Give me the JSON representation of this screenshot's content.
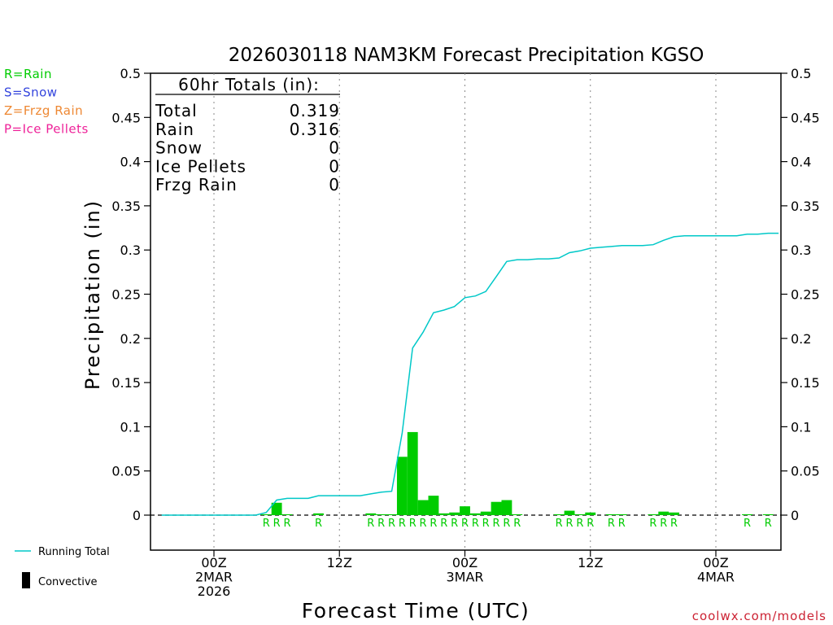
{
  "chart_data": {
    "type": "bar+line",
    "title": "2026030118 NAM3KM Forecast Precipitation KGSO",
    "ylabel": "Precipitation (in)",
    "xlabel": "Forecast Time (UTC)",
    "ylim": [
      -0.04,
      0.5
    ],
    "y_ticks": [
      0,
      0.05,
      0.1,
      0.15,
      0.2,
      0.25,
      0.3,
      0.35,
      0.4,
      0.45,
      0.5
    ],
    "y_tick_labels": [
      "0",
      "0.05",
      "0.1",
      "0.15",
      "0.2",
      "0.25",
      "0.3",
      "0.35",
      "0.4",
      "0.45",
      "0.5"
    ],
    "x_range_hours": [
      1,
      60
    ],
    "x_ticks": [
      {
        "hour": 6,
        "lines": [
          "00Z",
          "2MAR",
          "2026"
        ]
      },
      {
        "hour": 18,
        "lines": [
          "12Z"
        ]
      },
      {
        "hour": 30,
        "lines": [
          "00Z",
          "3MAR"
        ]
      },
      {
        "hour": 42,
        "lines": [
          "12Z"
        ]
      },
      {
        "hour": 54,
        "lines": [
          "00Z",
          "4MAR"
        ]
      }
    ],
    "precip_type_legend": [
      {
        "code": "R",
        "label": "R=Rain",
        "color": "#00cc00"
      },
      {
        "code": "S",
        "label": "S=Snow",
        "color": "#3344dd"
      },
      {
        "code": "Z",
        "label": "Z=Frzg Rain",
        "color": "#ee8833"
      },
      {
        "code": "P",
        "label": "P=Ice Pellets",
        "color": "#ee2299"
      }
    ],
    "series_legend": [
      {
        "name": "Running Total",
        "kind": "line",
        "color": "#00c8c8"
      },
      {
        "name": "Convective",
        "kind": "bar",
        "color": "#000000"
      }
    ],
    "totals_box": {
      "header": "60hr Totals (in):",
      "rows": [
        {
          "label": "Total",
          "value": "0.319"
        },
        {
          "label": "Rain",
          "value": "0.316"
        },
        {
          "label": "Snow",
          "value": "0"
        },
        {
          "label": "Ice Pellets",
          "value": "0"
        },
        {
          "label": "Frzg Rain",
          "value": "0"
        }
      ]
    },
    "hourly_precip": [
      {
        "hour": 12,
        "value": 0.014,
        "type": "R"
      },
      {
        "hour": 11,
        "value": 0.001,
        "type": "R"
      },
      {
        "hour": 13,
        "value": 0.001,
        "type": "R"
      },
      {
        "hour": 16,
        "value": 0.002,
        "type": "R"
      },
      {
        "hour": 21,
        "value": 0.002,
        "type": "R"
      },
      {
        "hour": 22,
        "value": 0.001,
        "type": "R"
      },
      {
        "hour": 23,
        "value": 0.001,
        "type": "R"
      },
      {
        "hour": 24,
        "value": 0.066,
        "type": "R"
      },
      {
        "hour": 25,
        "value": 0.094,
        "type": "R"
      },
      {
        "hour": 26,
        "value": 0.017,
        "type": "R"
      },
      {
        "hour": 27,
        "value": 0.022,
        "type": "R"
      },
      {
        "hour": 28,
        "value": 0.002,
        "type": "R"
      },
      {
        "hour": 29,
        "value": 0.003,
        "type": "R"
      },
      {
        "hour": 30,
        "value": 0.01,
        "type": "R"
      },
      {
        "hour": 31,
        "value": 0.002,
        "type": "R"
      },
      {
        "hour": 32,
        "value": 0.004,
        "type": "R"
      },
      {
        "hour": 33,
        "value": 0.015,
        "type": "R"
      },
      {
        "hour": 34,
        "value": 0.017,
        "type": "R"
      },
      {
        "hour": 35,
        "value": 0.001,
        "type": "R"
      },
      {
        "hour": 39,
        "value": 0.001,
        "type": "R"
      },
      {
        "hour": 40,
        "value": 0.005,
        "type": "R"
      },
      {
        "hour": 41,
        "value": 0.001,
        "type": "R"
      },
      {
        "hour": 42,
        "value": 0.003,
        "type": "R"
      },
      {
        "hour": 44,
        "value": 0.001,
        "type": "R"
      },
      {
        "hour": 45,
        "value": 0.001,
        "type": "R"
      },
      {
        "hour": 48,
        "value": 0.001,
        "type": "R"
      },
      {
        "hour": 49,
        "value": 0.004,
        "type": "R"
      },
      {
        "hour": 50,
        "value": 0.003,
        "type": "R"
      },
      {
        "hour": 57,
        "value": 0.001,
        "type": "R"
      },
      {
        "hour": 59,
        "value": 0.001,
        "type": "R"
      }
    ],
    "type_markers": [
      {
        "hour": 11,
        "type": "R"
      },
      {
        "hour": 12,
        "type": "R"
      },
      {
        "hour": 13,
        "type": "R"
      },
      {
        "hour": 16,
        "type": "R"
      },
      {
        "hour": 21,
        "type": "R"
      },
      {
        "hour": 22,
        "type": "R"
      },
      {
        "hour": 23,
        "type": "R"
      },
      {
        "hour": 24,
        "type": "R"
      },
      {
        "hour": 25,
        "type": "R"
      },
      {
        "hour": 26,
        "type": "R"
      },
      {
        "hour": 27,
        "type": "R"
      },
      {
        "hour": 28,
        "type": "R"
      },
      {
        "hour": 29,
        "type": "R"
      },
      {
        "hour": 30,
        "type": "R"
      },
      {
        "hour": 31,
        "type": "R"
      },
      {
        "hour": 32,
        "type": "R"
      },
      {
        "hour": 33,
        "type": "R"
      },
      {
        "hour": 34,
        "type": "R"
      },
      {
        "hour": 35,
        "type": "R"
      },
      {
        "hour": 39,
        "type": "R"
      },
      {
        "hour": 40,
        "type": "R"
      },
      {
        "hour": 41,
        "type": "R"
      },
      {
        "hour": 42,
        "type": "R"
      },
      {
        "hour": 44,
        "type": "R"
      },
      {
        "hour": 45,
        "type": "R"
      },
      {
        "hour": 48,
        "type": "R"
      },
      {
        "hour": 49,
        "type": "R"
      },
      {
        "hour": 50,
        "type": "R"
      },
      {
        "hour": 57,
        "type": "R"
      },
      {
        "hour": 59,
        "type": "R"
      }
    ],
    "running_total": {
      "hours": [
        1,
        2,
        3,
        4,
        5,
        6,
        7,
        8,
        9,
        10,
        11,
        12,
        13,
        14,
        15,
        16,
        17,
        18,
        19,
        20,
        21,
        22,
        23,
        24,
        25,
        26,
        27,
        28,
        29,
        30,
        31,
        32,
        33,
        34,
        35,
        36,
        37,
        38,
        39,
        40,
        41,
        42,
        43,
        44,
        45,
        46,
        47,
        48,
        49,
        50,
        51,
        52,
        53,
        54,
        55,
        56,
        57,
        58,
        59,
        60
      ],
      "values": [
        0,
        0,
        0,
        0,
        0,
        0,
        0,
        0,
        0,
        0,
        0.003,
        0.017,
        0.019,
        0.019,
        0.019,
        0.022,
        0.022,
        0.022,
        0.022,
        0.022,
        0.024,
        0.026,
        0.027,
        0.093,
        0.189,
        0.207,
        0.229,
        0.232,
        0.236,
        0.246,
        0.248,
        0.253,
        0.27,
        0.287,
        0.289,
        0.289,
        0.29,
        0.29,
        0.291,
        0.297,
        0.299,
        0.302,
        0.303,
        0.304,
        0.305,
        0.305,
        0.305,
        0.306,
        0.311,
        0.315,
        0.316,
        0.316,
        0.316,
        0.316,
        0.316,
        0.316,
        0.318,
        0.318,
        0.319,
        0.319
      ]
    }
  },
  "footer": {
    "credit": "coolwx.com/models"
  }
}
